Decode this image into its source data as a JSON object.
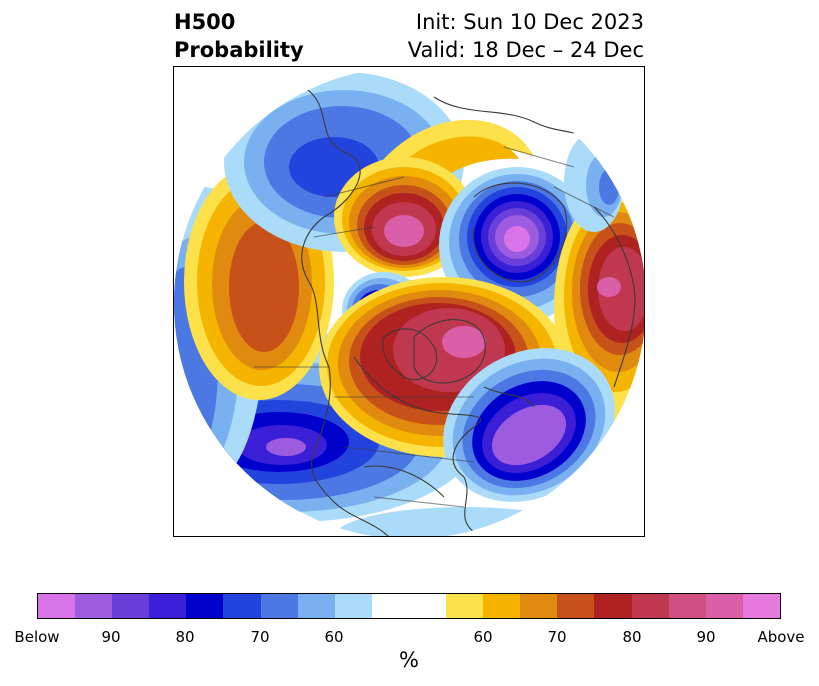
{
  "header": {
    "title_line1": "H500",
    "title_line2": "Probability",
    "init": "Init: Sun 10 Dec 2023",
    "valid": "Valid: 18 Dec – 24 Dec"
  },
  "colorbar": {
    "unit_label": "%",
    "colors": [
      "#d873e8",
      "#9d5be0",
      "#6a3fd9",
      "#3b1fd6",
      "#0000cc",
      "#2244dd",
      "#4c78e4",
      "#79b0f0",
      "#aadcfa",
      "#ffffff",
      "#ffffff",
      "#fde14a",
      "#f4b400",
      "#e08a10",
      "#c65219",
      "#ae2222",
      "#c0384f",
      "#cf4f80",
      "#db5ea8",
      "#e678de"
    ],
    "ticks": [
      "Below",
      "90",
      "80",
      "70",
      "60",
      "60",
      "70",
      "80",
      "90",
      "Above"
    ]
  },
  "map": {
    "projection": "north-polar-stereographic",
    "palette": {
      "below_outer": "#aadcfa",
      "below_2": "#79b0f0",
      "below_3": "#4c78e4",
      "below_4": "#2244dd",
      "below_5": "#0000cc",
      "below_6": "#3b1fd6",
      "below_7": "#6a3fd9",
      "below_8": "#9d5be0",
      "below_inner": "#d873e8",
      "above_outer": "#fde14a",
      "above_2": "#f4b400",
      "above_3": "#e08a10",
      "above_4": "#c65219",
      "above_5": "#ae2222",
      "above_6": "#c0384f",
      "above_7": "#cf4f80",
      "above_inner": "#db5ea8",
      "coastline": "#3a3a3a"
    }
  }
}
